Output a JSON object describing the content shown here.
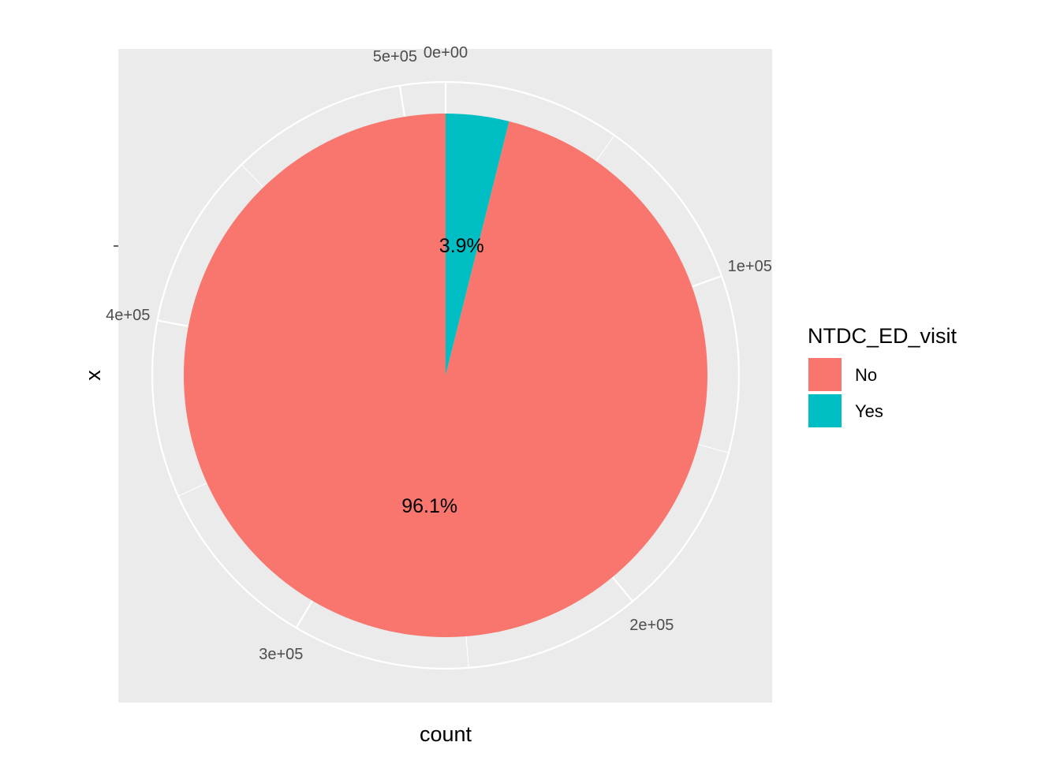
{
  "chart_data": {
    "type": "pie",
    "coord": "polar",
    "xlabel": "count",
    "ylabel": "x",
    "total": 512820,
    "radial_ticks": [
      0,
      100000,
      200000,
      300000,
      400000,
      500000
    ],
    "radial_tick_labels": [
      "0e+00",
      "1e+05",
      "2e+05",
      "3e+05",
      "4e+05",
      "5e+05"
    ],
    "slices": [
      {
        "category": "Yes",
        "value": 20000,
        "label": "3.9%",
        "color": "#00BFC4"
      },
      {
        "category": "No",
        "value": 492820,
        "label": "96.1%",
        "color": "#F8766D"
      }
    ],
    "legend": {
      "title": "NTDC_ED_visit",
      "position": "right",
      "items": [
        {
          "label": "No",
          "color": "#F8766D"
        },
        {
          "label": "Yes",
          "color": "#00BFC4"
        }
      ]
    },
    "panel_background": "#EBEBEB",
    "grid": true
  }
}
